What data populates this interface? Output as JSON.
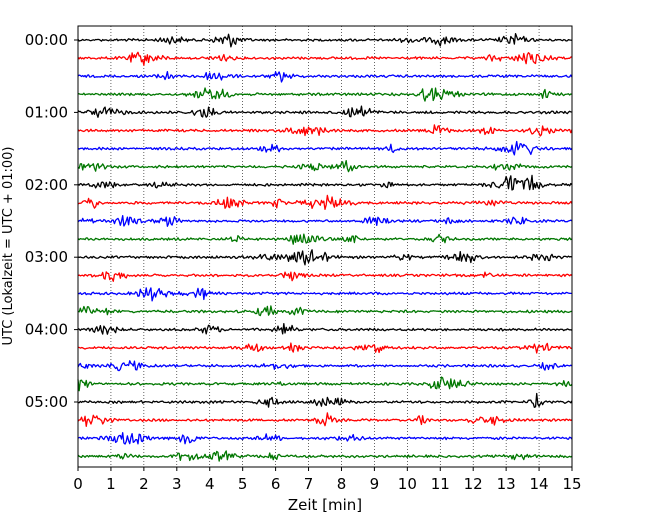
{
  "chart_data": {
    "type": "line",
    "title": "",
    "xlabel": "Zeit  [min]",
    "ylabel": "UTC (Lokalzeit = UTC + 01:00)",
    "xlim": [
      0,
      15
    ],
    "x_ticks": [
      "0",
      "1",
      "2",
      "3",
      "4",
      "5",
      "6",
      "7",
      "8",
      "9",
      "10",
      "11",
      "12",
      "13",
      "14",
      "15"
    ],
    "y_tick_labels": [
      "00:00",
      "01:00",
      "02:00",
      "03:00",
      "04:00",
      "05:00"
    ],
    "grid": "vertical dotted at each minute",
    "trace_interval_minutes": 15,
    "trace_count": 24,
    "trace_colors": [
      "#000000",
      "#ff0000",
      "#0000ff",
      "#007700"
    ],
    "series_note": "one seismogram trace per 15-minute interval, starting 00:00 UTC, colors repeating black, red, blue, green"
  }
}
